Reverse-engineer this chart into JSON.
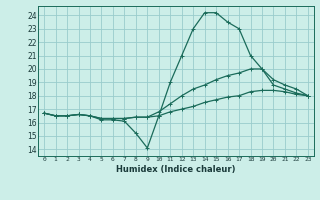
{
  "xlabel": "Humidex (Indice chaleur)",
  "bg_color": "#cceee8",
  "grid_color": "#99cccc",
  "line_color": "#1a6b5a",
  "xlim": [
    -0.5,
    23.5
  ],
  "ylim": [
    13.5,
    24.7
  ],
  "yticks": [
    14,
    15,
    16,
    17,
    18,
    19,
    20,
    21,
    22,
    23,
    24
  ],
  "xticks": [
    0,
    1,
    2,
    3,
    4,
    5,
    6,
    7,
    8,
    9,
    10,
    11,
    12,
    13,
    14,
    15,
    16,
    17,
    18,
    19,
    20,
    21,
    22,
    23
  ],
  "series": [
    [
      16.7,
      16.5,
      16.5,
      16.6,
      16.5,
      16.2,
      16.2,
      16.1,
      15.2,
      14.1,
      16.5,
      19.0,
      21.0,
      23.0,
      24.2,
      24.2,
      23.5,
      23.0,
      21.0,
      20.0,
      18.8,
      18.5,
      18.2,
      18.0
    ],
    [
      16.7,
      16.5,
      16.5,
      16.6,
      16.5,
      16.3,
      16.3,
      16.3,
      16.4,
      16.4,
      16.8,
      17.4,
      18.0,
      18.5,
      18.8,
      19.2,
      19.5,
      19.7,
      20.0,
      20.0,
      19.2,
      18.8,
      18.5,
      18.0
    ],
    [
      16.7,
      16.5,
      16.5,
      16.6,
      16.5,
      16.3,
      16.3,
      16.3,
      16.4,
      16.4,
      16.5,
      16.8,
      17.0,
      17.2,
      17.5,
      17.7,
      17.9,
      18.0,
      18.3,
      18.4,
      18.4,
      18.3,
      18.1,
      18.0
    ]
  ]
}
